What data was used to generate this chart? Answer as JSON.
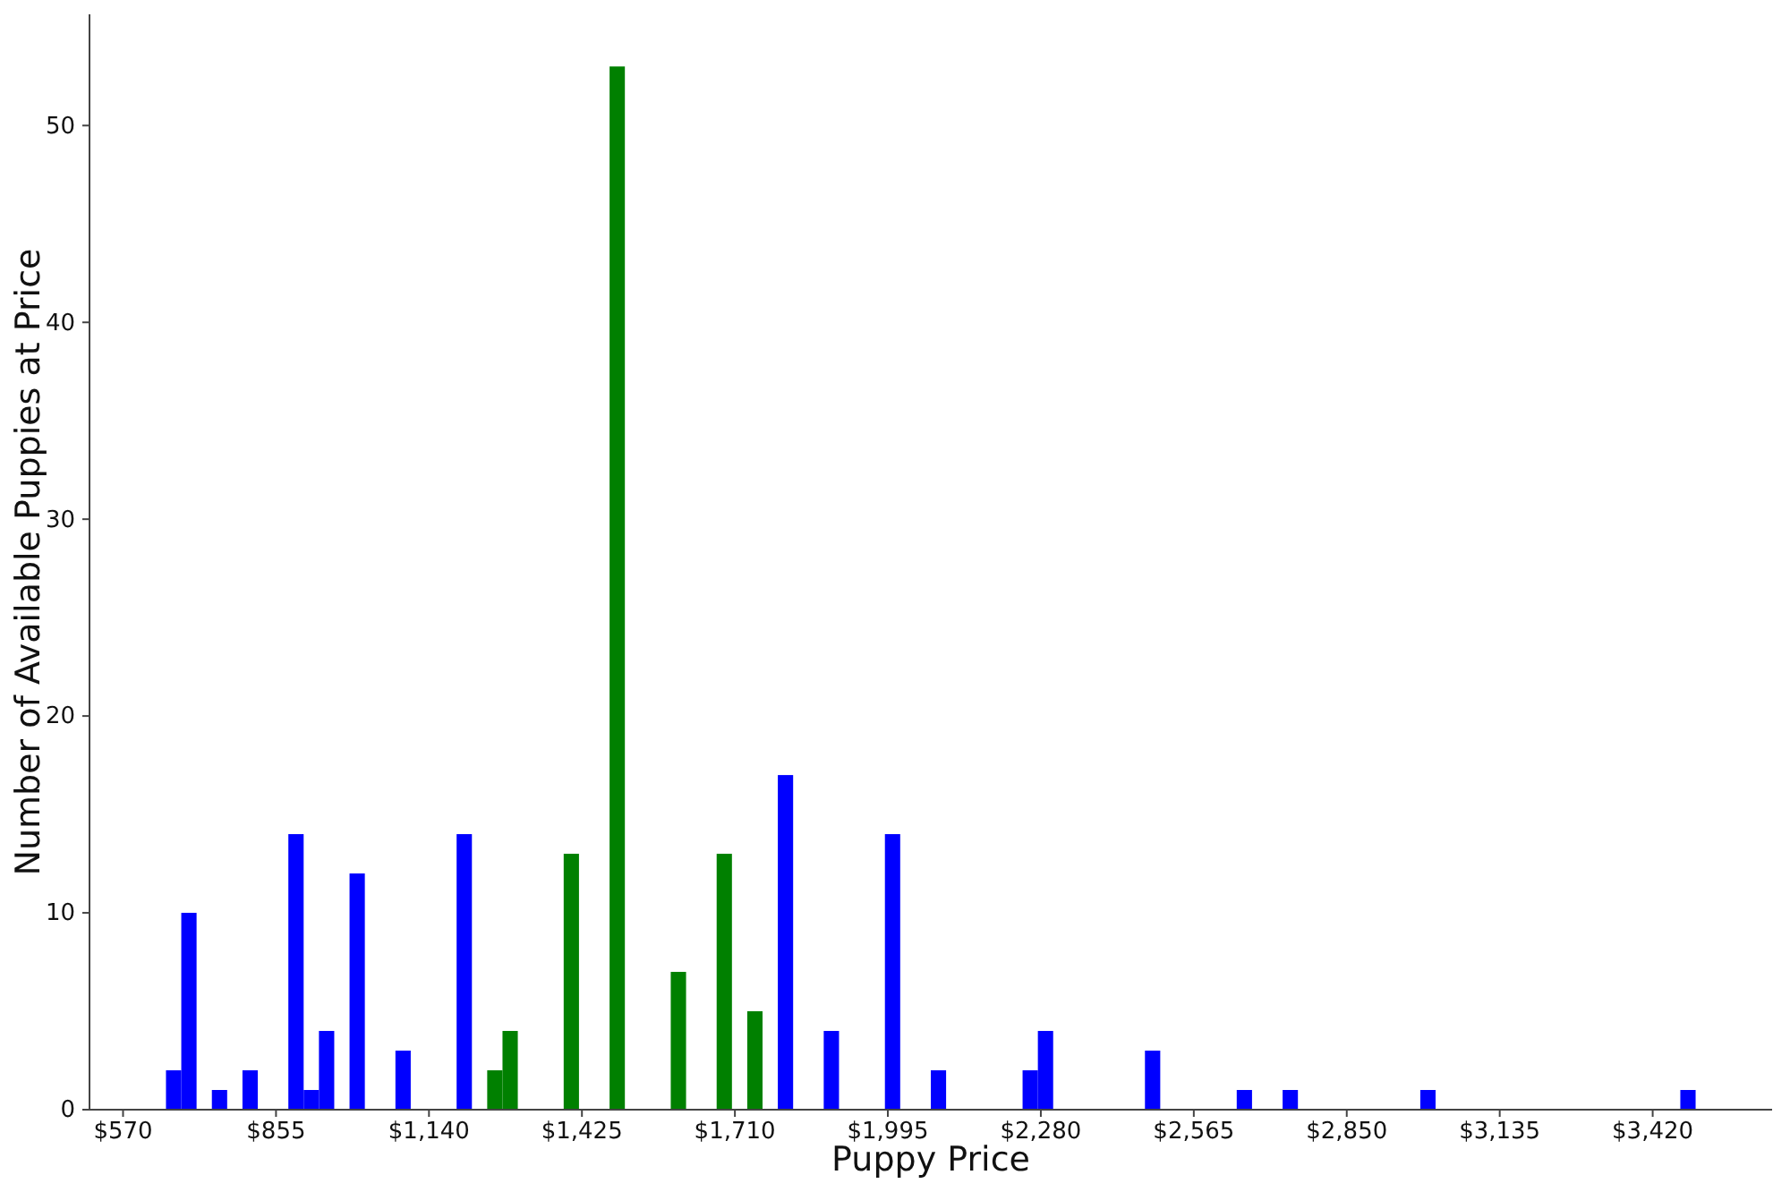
{
  "chart_data": {
    "type": "histogram",
    "xlabel": "Puppy Price",
    "ylabel": "Number of Available Puppies at Price",
    "bins": [
      650,
      678.5,
      707,
      735.5,
      764,
      792.5,
      821,
      849.5,
      878,
      906.5,
      935,
      963.5,
      992,
      1020.5,
      1049,
      1077.5,
      1106,
      1134.5,
      1163,
      1191.5,
      1220,
      1248.5,
      1277,
      1305.5,
      1334,
      1362.5,
      1391,
      1419.5,
      1448,
      1476.5,
      1505,
      1533.5,
      1562,
      1590.5,
      1619,
      1647.5,
      1676,
      1704.5,
      1733,
      1761.5,
      1790,
      1818.5,
      1847,
      1875.5,
      1904,
      1932.5,
      1961,
      1989.5,
      2018,
      2046.5,
      2075,
      2103.5,
      2132,
      2160.5,
      2189,
      2217.5,
      2246,
      2274.5,
      2303,
      2331.5,
      2360,
      2388.5,
      2417,
      2445.5,
      2474,
      2502.5,
      2531,
      2559.5,
      2588,
      2616.5,
      2645,
      2673.5,
      2702,
      2730.5,
      2759,
      2787.5,
      2816,
      2844.5,
      2873,
      2901.5,
      2930,
      2958.5,
      2987,
      3015.5,
      3044,
      3072.5,
      3101,
      3129.5,
      3158,
      3186.5,
      3215,
      3243.5,
      3272,
      3300.5,
      3329,
      3357.5,
      3386,
      3414.5,
      3443,
      3471.5,
      3500
    ],
    "values": [
      2,
      10,
      0,
      1,
      0,
      2,
      0,
      0,
      14,
      1,
      4,
      0,
      12,
      0,
      0,
      3,
      0,
      0,
      0,
      14,
      0,
      2,
      4,
      0,
      0,
      0,
      13,
      0,
      0,
      53,
      0,
      0,
      0,
      7,
      0,
      0,
      13,
      0,
      5,
      0,
      17,
      0,
      0,
      4,
      0,
      0,
      0,
      14,
      0,
      0,
      2,
      0,
      0,
      0,
      0,
      0,
      2,
      4,
      0,
      0,
      0,
      0,
      0,
      0,
      3,
      0,
      0,
      0,
      0,
      0,
      1,
      0,
      0,
      1,
      0,
      0,
      0,
      0,
      0,
      0,
      0,
      0,
      1,
      0,
      0,
      0,
      0,
      0,
      0,
      0,
      0,
      0,
      0,
      0,
      0,
      0,
      0,
      0,
      0,
      1
    ],
    "colors": [
      "#0000ff",
      "#0000ff",
      "#0000ff",
      "#0000ff",
      "#0000ff",
      "#0000ff",
      "#0000ff",
      "#0000ff",
      "#0000ff",
      "#0000ff",
      "#0000ff",
      "#0000ff",
      "#0000ff",
      "#0000ff",
      "#0000ff",
      "#0000ff",
      "#0000ff",
      "#0000ff",
      "#0000ff",
      "#0000ff",
      "#008000",
      "#008000",
      "#008000",
      "#008000",
      "#008000",
      "#008000",
      "#008000",
      "#008000",
      "#008000",
      "#008000",
      "#008000",
      "#008000",
      "#008000",
      "#008000",
      "#008000",
      "#008000",
      "#008000",
      "#008000",
      "#008000",
      "#008000",
      "#0000ff",
      "#0000ff",
      "#0000ff",
      "#0000ff",
      "#0000ff",
      "#0000ff",
      "#0000ff",
      "#0000ff",
      "#0000ff",
      "#0000ff",
      "#0000ff",
      "#0000ff",
      "#0000ff",
      "#0000ff",
      "#0000ff",
      "#0000ff",
      "#0000ff",
      "#0000ff",
      "#0000ff",
      "#0000ff",
      "#0000ff",
      "#0000ff",
      "#0000ff",
      "#0000ff",
      "#0000ff",
      "#0000ff",
      "#0000ff",
      "#0000ff",
      "#0000ff",
      "#0000ff",
      "#0000ff",
      "#0000ff",
      "#0000ff",
      "#0000ff",
      "#0000ff",
      "#0000ff",
      "#0000ff",
      "#0000ff",
      "#0000ff",
      "#0000ff",
      "#0000ff",
      "#0000ff",
      "#0000ff",
      "#0000ff",
      "#0000ff",
      "#0000ff",
      "#0000ff",
      "#0000ff",
      "#0000ff",
      "#0000ff",
      "#0000ff",
      "#0000ff",
      "#0000ff",
      "#0000ff",
      "#0000ff",
      "#0000ff",
      "#0000ff",
      "#0000ff",
      "#0000ff",
      "#0000ff"
    ],
    "xlim": [
      507.5,
      3642.5
    ],
    "xticks": [
      {
        "value": 570,
        "label": "$570"
      },
      {
        "value": 855,
        "label": "$855"
      },
      {
        "value": 1140,
        "label": "$1,140"
      },
      {
        "value": 1425,
        "label": "$1,425"
      },
      {
        "value": 1710,
        "label": "$1,710"
      },
      {
        "value": 1995,
        "label": "$1,995"
      },
      {
        "value": 2280,
        "label": "$2,280"
      },
      {
        "value": 2565,
        "label": "$2,565"
      },
      {
        "value": 2850,
        "label": "$2,850"
      },
      {
        "value": 3135,
        "label": "$3,135"
      },
      {
        "value": 3420,
        "label": "$3,420"
      }
    ],
    "ylim": [
      0,
      55.65
    ],
    "yticks": [
      0,
      10,
      20,
      30,
      40,
      50
    ]
  }
}
